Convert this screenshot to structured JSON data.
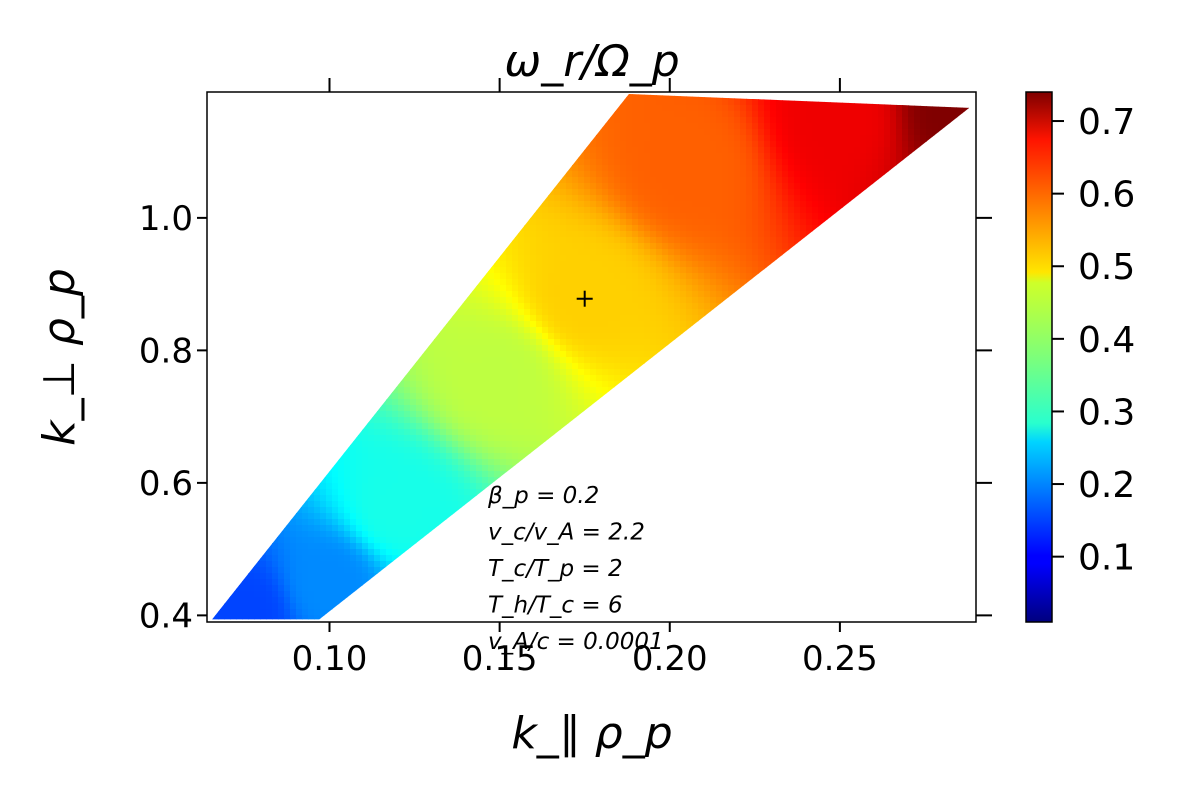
{
  "chart_data": {
    "type": "heatmap",
    "title": "ω_r/Ω_p",
    "xlabel": "k_∥ ρ_p",
    "ylabel": "k_⊥ ρ_p",
    "xlim": [
      0.064,
      0.29
    ],
    "ylim": [
      0.39,
      1.19
    ],
    "xticks": [
      0.1,
      0.15,
      0.2,
      0.25
    ],
    "xtick_labels": [
      "0.10",
      "0.15",
      "0.20",
      "0.25"
    ],
    "yticks": [
      0.4,
      0.6,
      0.8,
      1.0
    ],
    "ytick_labels": [
      "0.4",
      "0.6",
      "0.8",
      "1.0"
    ],
    "grid": false,
    "colormap": "jet",
    "colorbar": {
      "range": [
        0.01,
        0.74
      ],
      "ticks": [
        0.1,
        0.2,
        0.3,
        0.4,
        0.5,
        0.6,
        0.7
      ],
      "tick_labels": [
        "0.1",
        "0.2",
        "0.3",
        "0.4",
        "0.5",
        "0.6",
        "0.7"
      ]
    },
    "region": {
      "polygon": [
        [
          0.0655,
          0.394
        ],
        [
          0.097,
          0.394
        ],
        [
          0.288,
          1.166
        ],
        [
          0.188,
          1.187
        ]
      ],
      "value_samples": [
        {
          "x": 0.075,
          "y": 0.405,
          "value": 0.15
        },
        {
          "x": 0.1,
          "y": 0.45,
          "value": 0.2
        },
        {
          "x": 0.12,
          "y": 0.56,
          "value": 0.3
        },
        {
          "x": 0.15,
          "y": 0.76,
          "value": 0.42
        },
        {
          "x": 0.175,
          "y": 0.88,
          "value": 0.5
        },
        {
          "x": 0.205,
          "y": 1.08,
          "value": 0.58
        },
        {
          "x": 0.25,
          "y": 1.15,
          "value": 0.66
        },
        {
          "x": 0.285,
          "y": 1.165,
          "value": 0.74
        }
      ]
    },
    "marker": {
      "symbol": "+",
      "x": 0.175,
      "y": 0.878
    },
    "annotations": [
      "β_p = 0.2",
      "v_c/v_A = 2.2",
      "T_c/T_p = 2",
      "T_h/T_c = 6",
      "v_A/c = 0.0001"
    ]
  }
}
